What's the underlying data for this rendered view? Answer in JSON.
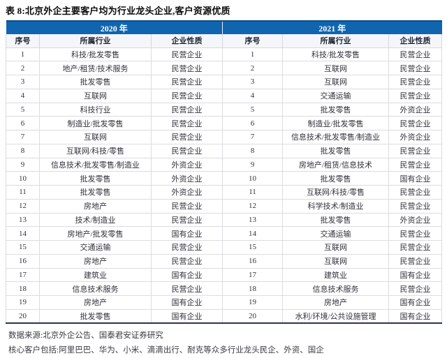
{
  "title": "表 8:北京外企主要客户均为行业龙头企业,客户资源优质",
  "table": {
    "year_headers": [
      "2020 年",
      "2021 年"
    ],
    "column_headers": [
      "序号",
      "所属行业",
      "企业性质",
      "序号",
      "所属行业",
      "企业性质"
    ],
    "rows": [
      [
        "1",
        "科技/批发零售",
        "民营企业",
        "1",
        "科技/批发零售",
        "民营企业"
      ],
      [
        "2",
        "地产/租赁/技术服务",
        "民营企业",
        "2",
        "互联网",
        "民营企业"
      ],
      [
        "3",
        "批发零售",
        "民营企业",
        "3",
        "互联网",
        "民营企业"
      ],
      [
        "4",
        "互联网",
        "民营企业",
        "4",
        "交通运输",
        "民营企业"
      ],
      [
        "5",
        "科技行业",
        "民营企业",
        "5",
        "批发零售",
        "外资企业"
      ],
      [
        "6",
        "制造业/批发零售",
        "民营企业",
        "6",
        "制造业/批发零售",
        "民营企业"
      ],
      [
        "7",
        "互联网",
        "民营企业",
        "7",
        "信息技术/批发零售/制造业",
        "外资企业"
      ],
      [
        "8",
        "互联网/科技/零售",
        "民营企业",
        "8",
        "批发零售",
        "民营企业"
      ],
      [
        "9",
        "信息技术/批发零售/制造业",
        "外资企业",
        "9",
        "房地产/租赁/信息技术",
        "民营企业"
      ],
      [
        "10",
        "批发零售",
        "外资企业",
        "10",
        "批发零售",
        "国有企业"
      ],
      [
        "11",
        "批发零售",
        "外资企业",
        "11",
        "互联网/科技/零售",
        "民营企业"
      ],
      [
        "12",
        "房地产",
        "民营企业",
        "12",
        "科学技术/制造业",
        "民营企业"
      ],
      [
        "13",
        "技术/制造业",
        "民营企业",
        "13",
        "批发零售",
        "外资企业"
      ],
      [
        "14",
        "房地产/批发零售",
        "国有企业",
        "14",
        "交通运输",
        "民营企业"
      ],
      [
        "15",
        "交通运输",
        "民营企业",
        "15",
        "互联网",
        "民营企业"
      ],
      [
        "16",
        "房地产",
        "民营企业",
        "16",
        "互联网",
        "民营企业"
      ],
      [
        "17",
        "建筑业",
        "国有企业",
        "17",
        "建筑业",
        "国有企业"
      ],
      [
        "18",
        "信息技术服务",
        "民营企业",
        "18",
        "信息技术服务",
        "民营企业"
      ],
      [
        "19",
        "房地产",
        "国有企业",
        "19",
        "房地产",
        "国有企业"
      ],
      [
        "20",
        "批发零售",
        "国有企业",
        "20",
        "水利/环境/公共设施管理",
        "国有企业"
      ]
    ]
  },
  "footnotes": {
    "source": "数据来源:北京外企公告、国泰君安证券研究",
    "note": "核心客户包括:阿里巴巴、华为、小米、滴滴出行、耐克等众多行业龙头民企、外资、国企"
  },
  "colors": {
    "header_bg": "#1165af",
    "header_top_border": "#0a4c8c",
    "header_text": "#ffffff",
    "subheader_bg": "#f4f6f9",
    "grid_line": "#d9dce2",
    "table_bottom_border": "#2a3350",
    "body_text": "#31313b"
  }
}
